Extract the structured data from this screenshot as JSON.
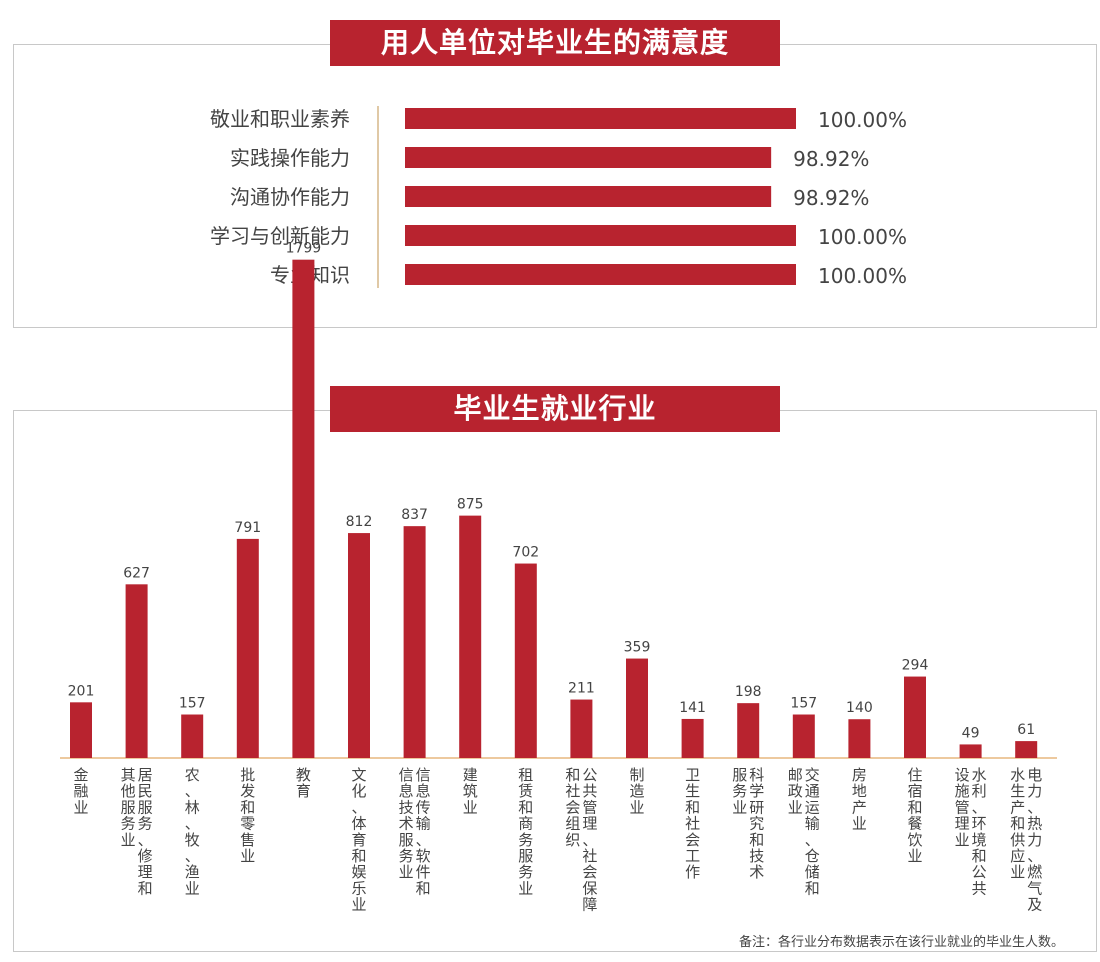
{
  "sections": {
    "satisfaction_title": "用人单位对毕业生的满意度",
    "industry_title": "毕业生就业行业"
  },
  "colors": {
    "bar": "#b8232f",
    "axis": "#e7b77f",
    "divider": "#e0c9a6"
  },
  "chart_data": [
    {
      "type": "bar",
      "orientation": "horizontal",
      "title": "用人单位对毕业生的满意度",
      "categories": [
        "敬业和职业素养",
        "实践操作能力",
        "沟通协作能力",
        "学习与创新能力",
        "专业知识"
      ],
      "values": [
        100.0,
        98.92,
        98.92,
        100.0,
        100.0
      ],
      "value_labels": [
        "100.00%",
        "98.92%",
        "98.92%",
        "100.00%",
        "100.00%"
      ],
      "xlim": [
        83,
        100
      ],
      "grid": false,
      "legend": "none"
    },
    {
      "type": "bar",
      "orientation": "vertical",
      "title": "毕业生就业行业",
      "categories": [
        "金融业",
        "居民服务、修理和其他服务业",
        "农、林、牧、渔业",
        "批发和零售业",
        "教育",
        "文化、体育和娱乐业",
        "信息传输、软件和信息技术服务业",
        "建筑业",
        "租赁和商务服务业",
        "公共管理、社会保障和社会组织",
        "制造业",
        "卫生和社会工作",
        "科学研究和技术服务业",
        "交通运输、仓储和邮政业",
        "房地产业",
        "住宿和餐饮业",
        "水利、环境和公共设施管理业",
        "电力、热力、燃气及水生产和供应业"
      ],
      "category_lines": [
        [
          "金融业"
        ],
        [
          "居民服务、修理和",
          "其他服务业"
        ],
        [
          "农、林、牧、渔业"
        ],
        [
          "批发和零售业"
        ],
        [
          "教育"
        ],
        [
          "文化、体育和娱乐业"
        ],
        [
          "信息传输、软件和",
          "信息技术服务业"
        ],
        [
          "建筑业"
        ],
        [
          "租赁和商务服务业"
        ],
        [
          "公共管理、社会保障",
          "和社会组织"
        ],
        [
          "制造业"
        ],
        [
          "卫生和社会工作"
        ],
        [
          "科学研究和技术",
          "服务业"
        ],
        [
          "交通运输、仓储和",
          "邮政业"
        ],
        [
          "房地产业"
        ],
        [
          "住宿和餐饮业"
        ],
        [
          "水利、环境和公共",
          "设施管理业"
        ],
        [
          "电力、热力、燃气及",
          "水生产和供应业"
        ]
      ],
      "values": [
        201,
        627,
        157,
        791,
        1799,
        812,
        837,
        875,
        702,
        211,
        359,
        141,
        198,
        157,
        140,
        294,
        49,
        61
      ],
      "ylim": [
        0,
        1850
      ],
      "grid": false,
      "legend": "none",
      "note": "备注：各行业分布数据表示在该行业就业的毕业生人数。"
    }
  ]
}
